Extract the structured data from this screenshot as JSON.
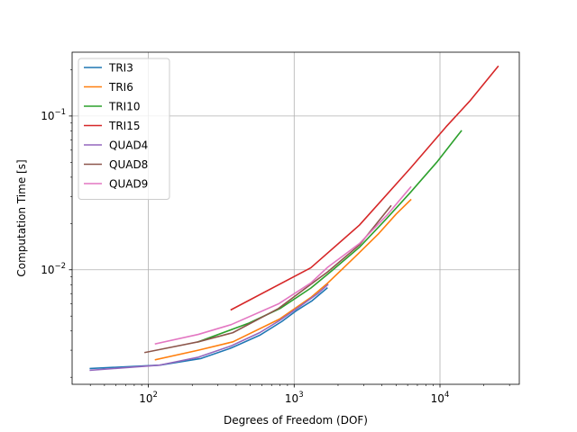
{
  "chart_data": {
    "type": "line",
    "xlabel": "Degrees of Freedom (DOF)",
    "ylabel": "Computation Time [s]",
    "xscale": "log",
    "yscale": "log",
    "xlim": [
      30,
      35000
    ],
    "ylim": [
      0.0018,
      0.26
    ],
    "grid": true,
    "legend_position": "top-left",
    "x_ticks": [
      {
        "value": 100,
        "base": "10",
        "exp": "2"
      },
      {
        "value": 1000,
        "base": "10",
        "exp": "3"
      },
      {
        "value": 10000,
        "base": "10",
        "exp": "4"
      }
    ],
    "y_ticks": [
      {
        "value": 0.01,
        "base": "10",
        "exp": "−2"
      },
      {
        "value": 0.1,
        "base": "10",
        "exp": "−1"
      }
    ],
    "series": [
      {
        "name": "TRI3",
        "color": "#1f77b4",
        "x": [
          40,
          120,
          230,
          370,
          580,
          820,
          1030,
          1330,
          1680
        ],
        "y": [
          0.00228,
          0.0024,
          0.00265,
          0.0031,
          0.00375,
          0.0046,
          0.0054,
          0.0063,
          0.0076
        ]
      },
      {
        "name": "TRI6",
        "color": "#ff7f0e",
        "x": [
          112,
          220,
          380,
          800,
          1300,
          1700,
          2700,
          3800,
          5000,
          6300
        ],
        "y": [
          0.0026,
          0.003,
          0.0034,
          0.0048,
          0.0066,
          0.0082,
          0.0125,
          0.0172,
          0.023,
          0.0285
        ]
      },
      {
        "name": "TRI10",
        "color": "#2ca02c",
        "x": [
          220,
          490,
          800,
          1300,
          1800,
          2800,
          4300,
          6300,
          9500,
          14000
        ],
        "y": [
          0.0034,
          0.0045,
          0.0056,
          0.0076,
          0.0098,
          0.014,
          0.0215,
          0.032,
          0.05,
          0.08
        ]
      },
      {
        "name": "TRI15",
        "color": "#d62728",
        "x": [
          370,
          1300,
          2800,
          6300,
          11000,
          16000,
          25000
        ],
        "y": [
          0.0055,
          0.0103,
          0.0195,
          0.046,
          0.085,
          0.125,
          0.21
        ]
      },
      {
        "name": "QUAD4",
        "color": "#9467bd",
        "x": [
          40,
          120,
          220,
          370,
          580,
          800,
          1100,
          1450,
          1700
        ],
        "y": [
          0.00222,
          0.0024,
          0.0027,
          0.0032,
          0.0039,
          0.0047,
          0.0058,
          0.007,
          0.008
        ]
      },
      {
        "name": "QUAD8",
        "color": "#8c564b",
        "x": [
          95,
          220,
          380,
          780,
          1200,
          1700,
          2800,
          4600
        ],
        "y": [
          0.0029,
          0.0034,
          0.0039,
          0.0056,
          0.0076,
          0.0097,
          0.0145,
          0.026
        ]
      },
      {
        "name": "QUAD9",
        "color": "#e377c2",
        "x": [
          112,
          220,
          370,
          780,
          1300,
          1700,
          2800,
          4300,
          6300
        ],
        "y": [
          0.0033,
          0.0038,
          0.0044,
          0.006,
          0.0082,
          0.0104,
          0.0148,
          0.0225,
          0.0345
        ]
      }
    ]
  }
}
